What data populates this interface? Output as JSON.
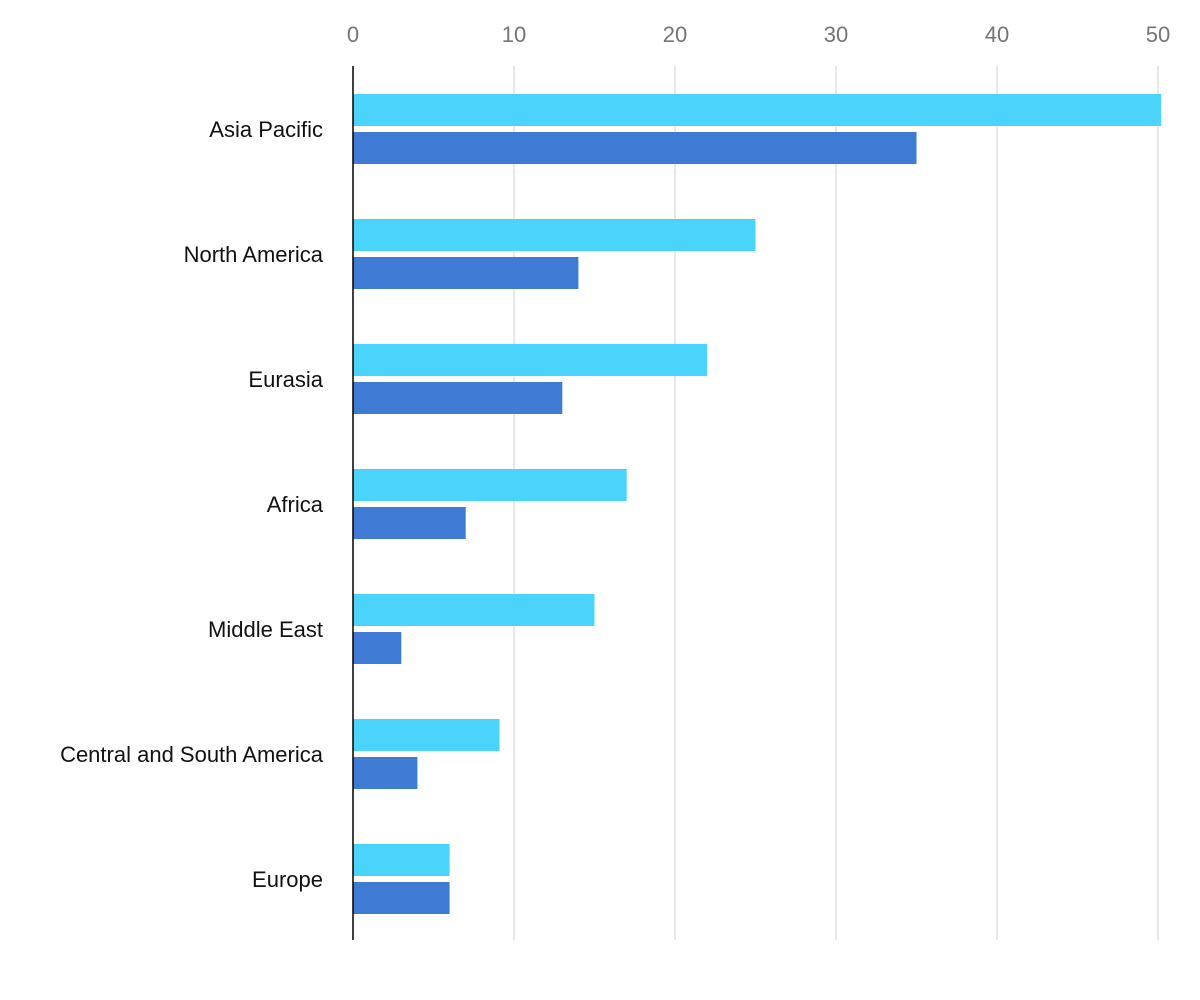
{
  "chart_data": {
    "type": "bar",
    "orientation": "horizontal",
    "categories": [
      "Asia Pacific",
      "North America",
      "Eurasia",
      "Africa",
      "Middle East",
      "Central and South America",
      "Europe"
    ],
    "series": [
      {
        "color": "#4ad4fc",
        "values": [
          50.2,
          25,
          22,
          17,
          15,
          9.1,
          6
        ]
      },
      {
        "color": "#3f7bd4",
        "values": [
          35,
          14,
          13,
          7,
          3,
          4,
          6
        ]
      }
    ],
    "xlim": [
      0,
      50
    ],
    "xticks": [
      0,
      10,
      20,
      30,
      40,
      50
    ],
    "x_axis_position": "top",
    "grid": true,
    "legend": "none"
  }
}
